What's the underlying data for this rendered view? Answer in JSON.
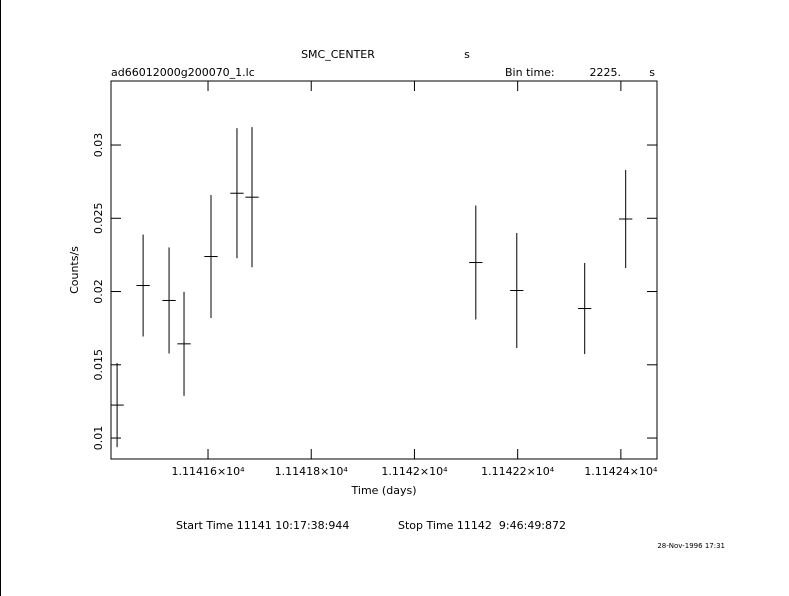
{
  "chart_data": {
    "type": "errorbar",
    "title": "SMC_CENTER",
    "title_unit": "s",
    "subtitle": "ad66012000g200070_1.lc",
    "bin_time_label": "Bin time:",
    "bin_time": "2225.",
    "bin_time_unit": "s",
    "x_label": "Time (days)",
    "y_label": "Counts/s",
    "start_time": "Start Time 11141 10:17:38:944",
    "stop_time": "Stop Time 11142  9:46:49:872",
    "date": "28-Nov-1996 17:31",
    "color": "#000000",
    "x": [
      11141.4238,
      11141.4742,
      11141.5245,
      11141.5535,
      11141.6058,
      11141.6561,
      11141.6852,
      11142.1189,
      11142.1983,
      11142.3299,
      11142.4093
    ],
    "xerr": [
      0.0129,
      0.0129,
      0.0129,
      0.0129,
      0.0129,
      0.0129,
      0.0129,
      0.0129,
      0.0129,
      0.0129,
      0.0129
    ],
    "series": [
      {
        "values": [
          0.01225,
          0.02041,
          0.01939,
          0.01643,
          0.02239,
          0.02671,
          0.02644,
          0.02198,
          0.02007,
          0.01884,
          0.02495
        ],
        "yerr": [
          0.00287,
          0.00348,
          0.00362,
          0.00355,
          0.0042,
          0.00444,
          0.00478,
          0.00389,
          0.00393,
          0.00311,
          0.00335
        ]
      }
    ],
    "xlim": [
      11141.412,
      11142.47
    ],
    "ylim": [
      0.00857,
      0.03437
    ],
    "xticks": [
      {
        "value": 11141.6,
        "label": "1.11416×10⁴"
      },
      {
        "value": 11141.8,
        "label": "1.11418×10⁴"
      },
      {
        "value": 11142.0,
        "label": "1.1142×10⁴"
      },
      {
        "value": 11142.2,
        "label": "1.11422×10⁴"
      },
      {
        "value": 11142.4,
        "label": "1.11424×10⁴"
      }
    ],
    "yticks": [
      0.01,
      0.015,
      0.02,
      0.025,
      0.03
    ]
  }
}
